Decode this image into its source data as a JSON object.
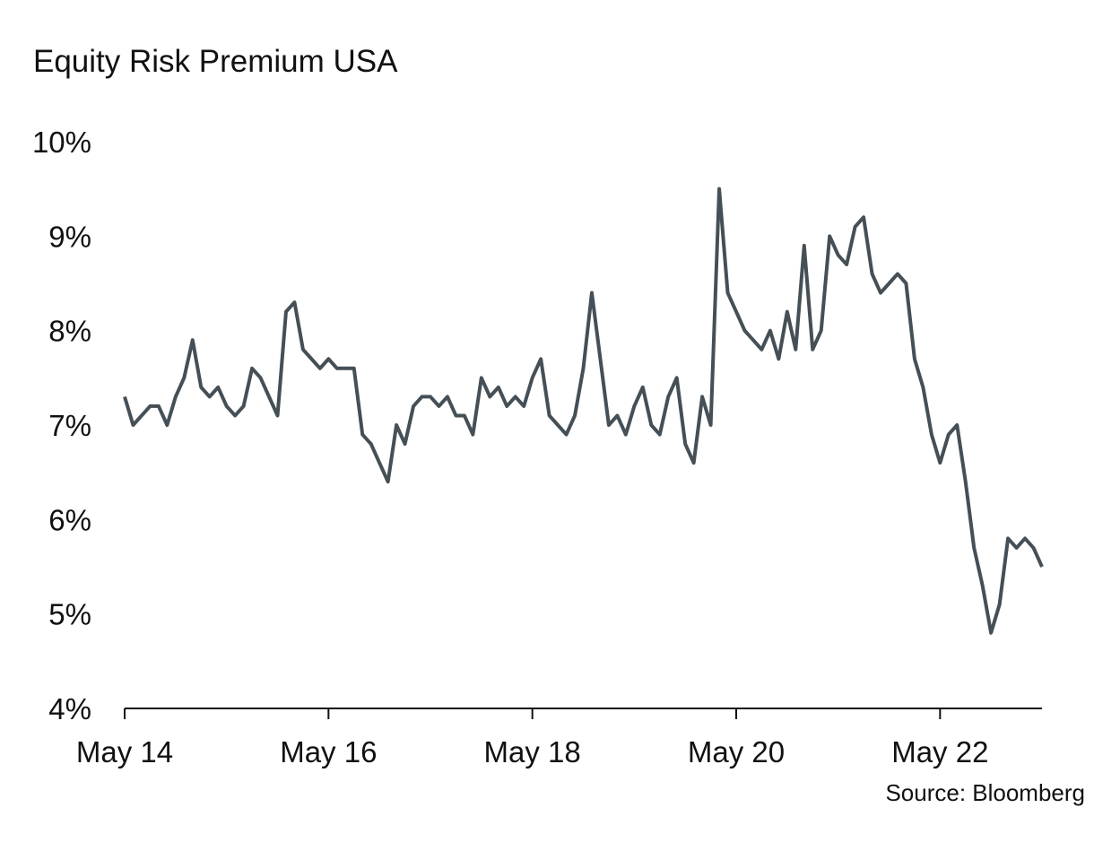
{
  "chart_data": {
    "type": "line",
    "title": "Equity Risk Premium USA",
    "source": "Source: Bloomberg",
    "x": [
      "2014-05",
      "2014-06",
      "2014-07",
      "2014-08",
      "2014-09",
      "2014-10",
      "2014-11",
      "2014-12",
      "2015-01",
      "2015-02",
      "2015-03",
      "2015-04",
      "2015-05",
      "2015-06",
      "2015-07",
      "2015-08",
      "2015-09",
      "2015-10",
      "2015-11",
      "2015-12",
      "2016-01",
      "2016-02",
      "2016-03",
      "2016-04",
      "2016-05",
      "2016-06",
      "2016-07",
      "2016-08",
      "2016-09",
      "2016-10",
      "2016-11",
      "2016-12",
      "2017-01",
      "2017-02",
      "2017-03",
      "2017-04",
      "2017-05",
      "2017-06",
      "2017-07",
      "2017-08",
      "2017-09",
      "2017-10",
      "2017-11",
      "2017-12",
      "2018-01",
      "2018-02",
      "2018-03",
      "2018-04",
      "2018-05",
      "2018-06",
      "2018-07",
      "2018-08",
      "2018-09",
      "2018-10",
      "2018-11",
      "2018-12",
      "2019-01",
      "2019-02",
      "2019-03",
      "2019-04",
      "2019-05",
      "2019-06",
      "2019-07",
      "2019-08",
      "2019-09",
      "2019-10",
      "2019-11",
      "2019-12",
      "2020-01",
      "2020-02",
      "2020-03",
      "2020-04",
      "2020-05",
      "2020-06",
      "2020-07",
      "2020-08",
      "2020-09",
      "2020-10",
      "2020-11",
      "2020-12",
      "2021-01",
      "2021-02",
      "2021-03",
      "2021-04",
      "2021-05",
      "2021-06",
      "2021-07",
      "2021-08",
      "2021-09",
      "2021-10",
      "2021-11",
      "2021-12",
      "2022-01",
      "2022-02",
      "2022-03",
      "2022-04",
      "2022-05",
      "2022-06",
      "2022-07",
      "2022-08",
      "2022-09",
      "2022-10",
      "2022-11",
      "2022-12",
      "2023-01",
      "2023-02",
      "2023-03",
      "2023-04",
      "2023-05"
    ],
    "series": [
      {
        "name": "Equity Risk Premium USA",
        "color": "#454f56",
        "values": [
          7.3,
          7.0,
          7.1,
          7.2,
          7.2,
          7.0,
          7.3,
          7.5,
          7.9,
          7.4,
          7.3,
          7.4,
          7.2,
          7.1,
          7.2,
          7.6,
          7.5,
          7.3,
          7.1,
          8.2,
          8.3,
          7.8,
          7.7,
          7.6,
          7.7,
          7.6,
          7.6,
          7.6,
          6.9,
          6.8,
          6.6,
          6.4,
          7.0,
          6.8,
          7.2,
          7.3,
          7.3,
          7.2,
          7.3,
          7.1,
          7.1,
          6.9,
          7.5,
          7.3,
          7.4,
          7.2,
          7.3,
          7.2,
          7.5,
          7.7,
          7.1,
          7.0,
          6.9,
          7.1,
          7.6,
          8.4,
          7.7,
          7.0,
          7.1,
          6.9,
          7.2,
          7.4,
          7.0,
          6.9,
          7.3,
          7.5,
          6.8,
          6.6,
          7.3,
          7.0,
          9.5,
          8.4,
          8.2,
          8.0,
          7.9,
          7.8,
          8.0,
          7.7,
          8.2,
          7.8,
          8.9,
          7.8,
          8.0,
          9.0,
          8.8,
          8.7,
          9.1,
          9.2,
          8.6,
          8.4,
          8.5,
          8.6,
          8.5,
          7.7,
          7.4,
          6.9,
          6.6,
          6.9,
          7.0,
          6.4,
          5.7,
          5.3,
          4.8,
          5.1,
          5.8,
          5.7,
          5.8,
          5.7,
          5.5
        ]
      }
    ],
    "xlim": [
      "2014-05",
      "2023-05"
    ],
    "xticks": [
      {
        "value": "2014-05",
        "label": "May 14"
      },
      {
        "value": "2016-05",
        "label": "May 16"
      },
      {
        "value": "2018-05",
        "label": "May 18"
      },
      {
        "value": "2020-05",
        "label": "May 20"
      },
      {
        "value": "2022-05",
        "label": "May 22"
      }
    ],
    "ylim": [
      4,
      10
    ],
    "yticks": [
      {
        "value": 4,
        "label": "4%"
      },
      {
        "value": 5,
        "label": "5%"
      },
      {
        "value": 6,
        "label": "6%"
      },
      {
        "value": 7,
        "label": "7%"
      },
      {
        "value": 8,
        "label": "8%"
      },
      {
        "value": 9,
        "label": "9%"
      },
      {
        "value": 10,
        "label": "10%"
      }
    ],
    "grid": false
  }
}
